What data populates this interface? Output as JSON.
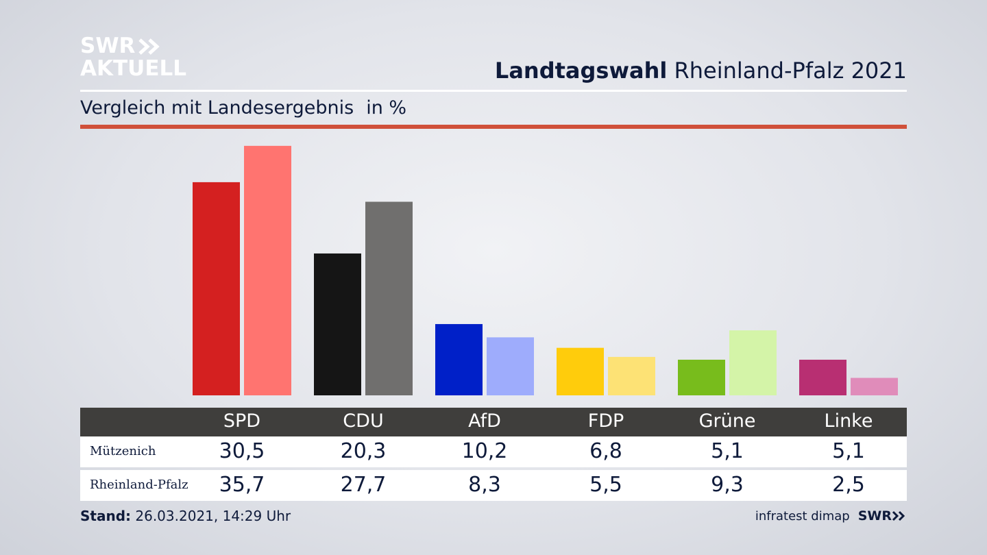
{
  "brand": {
    "line1": "SWR",
    "line2": "AKTUELL",
    "color": "#ffffff"
  },
  "header": {
    "title_bold": "Landtagswahl",
    "title_rest": "Rheinland-Pfalz 2021"
  },
  "subtitle": {
    "text": "Vergleich mit Landesergebnis",
    "unit": "in %"
  },
  "colors": {
    "accent_rule": "#d0503a",
    "table_header": "#3f3e3c"
  },
  "table": {
    "rows": [
      {
        "label": "Mützenich",
        "values": [
          "30,5",
          "20,3",
          "10,2",
          "6,8",
          "5,1",
          "5,1"
        ]
      },
      {
        "label": "Rheinland-Pfalz",
        "values": [
          "35,7",
          "27,7",
          "8,3",
          "5,5",
          "9,3",
          "2,5"
        ]
      }
    ]
  },
  "chart_data": {
    "type": "bar",
    "categories": [
      "SPD",
      "CDU",
      "AfD",
      "FDP",
      "Grüne",
      "Linke"
    ],
    "series": [
      {
        "name": "Mützenich",
        "values": [
          30.5,
          20.3,
          10.2,
          6.8,
          5.1,
          5.1
        ],
        "colors": [
          "#d42020",
          "#151515",
          "#0020c8",
          "#ffcc0c",
          "#78bc1c",
          "#b82f72"
        ]
      },
      {
        "name": "Rheinland-Pfalz",
        "values": [
          35.7,
          27.7,
          8.3,
          5.5,
          9.3,
          2.5
        ],
        "colors": [
          "#ff7470",
          "#706f6e",
          "#9eacfc",
          "#fde275",
          "#d4f4a8",
          "#e08cba"
        ]
      }
    ],
    "ylim": [
      0,
      36
    ],
    "grid": false,
    "legend": "table-below"
  },
  "footer": {
    "stand_label": "Stand:",
    "stand_value": "26.03.2021, 14:29 Uhr",
    "source": "infratest dimap",
    "logo": "SWR"
  }
}
